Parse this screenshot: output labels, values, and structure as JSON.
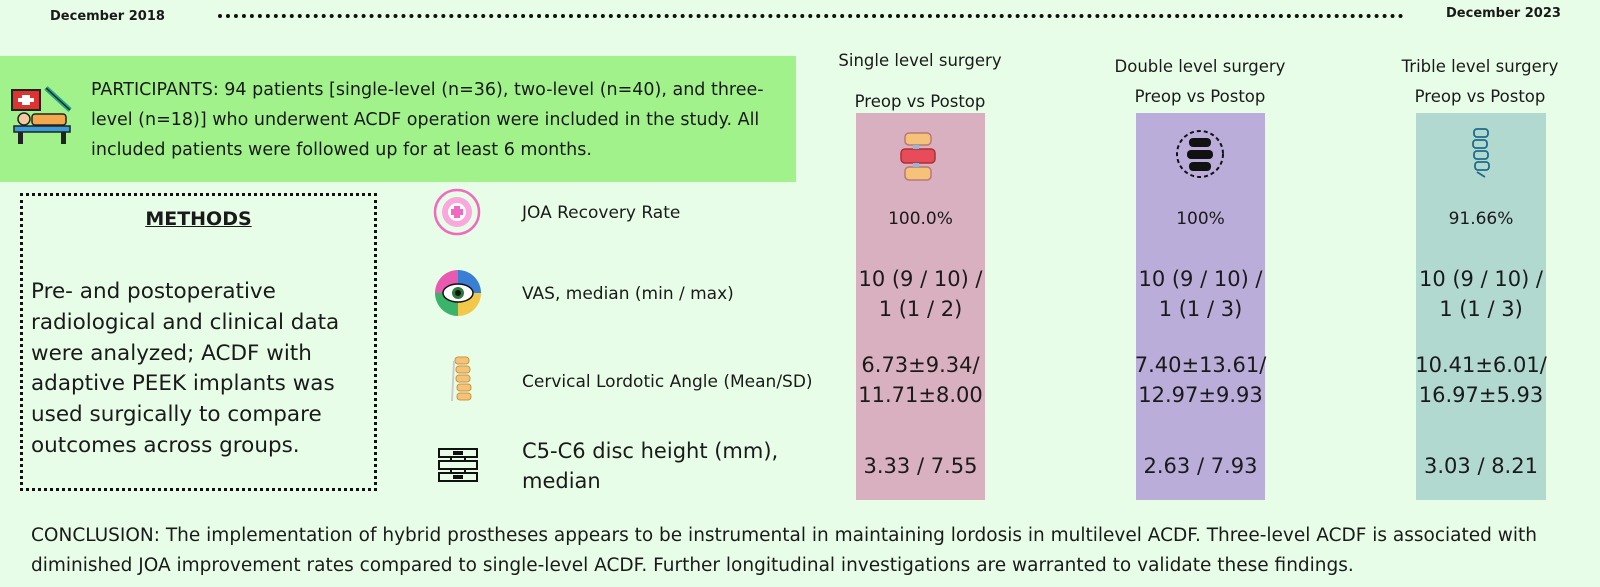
{
  "timeline": {
    "start_label": "December 2018",
    "end_label": "December 2023"
  },
  "participants": {
    "text": "PARTICIPANTS: 94 patients [single-level (n=36), two-level (n=40), and three-level (n=18)] who underwent  ACDF operation were included in the study. All included patients were followed up for at least 6 months.",
    "icon": "patient-bed-icon"
  },
  "methods": {
    "title": "METHODS",
    "text": "Pre- and postoperative radiological and clinical data were analyzed; ACDF with adaptive PEEK implants was used surgically to compare outcomes across groups."
  },
  "columns": [
    {
      "title": "Single level surgery",
      "subtitle": "Preop vs Postop",
      "color": "#d9b0bf",
      "icon": "spine-segment-icon"
    },
    {
      "title": "Double level surgery",
      "subtitle": "Preop vs Postop",
      "color": "#bbadd9",
      "icon": "vertebrae-circle-icon"
    },
    {
      "title": "Trible level surgery",
      "subtitle": "Preop vs Postop",
      "color": "#b2d9d0",
      "icon": "spine-column-icon"
    }
  ],
  "metrics": [
    {
      "label": "JOA Recovery Rate",
      "icon": "joa-target-icon",
      "values": [
        "100.0%",
        "100%",
        "91.66%"
      ]
    },
    {
      "label": "VAS, median (min / max)",
      "icon": "eye-scale-icon",
      "values": [
        [
          "10 (9 / 10) /",
          "1 (1 / 2)"
        ],
        [
          "10 (9 / 10) /",
          "1 (1 / 3)"
        ],
        [
          "10 (9 / 10) /",
          "1 (1 / 3)"
        ]
      ]
    },
    {
      "label": "Cervical Lordotic Angle (Mean/SD)",
      "icon": "vertebral-column-icon",
      "values": [
        [
          "6.73±9.34/",
          "11.71±8.00"
        ],
        [
          "7.40±13.61/",
          "12.97±9.93"
        ],
        [
          "10.41±6.01/",
          "16.97±5.93"
        ]
      ]
    },
    {
      "label": "C5-C6 disc height (mm), median",
      "icon": "disc-height-icon",
      "values": [
        "3.33 / 7.55",
        "2.63 / 7.93",
        "3.03 / 8.21"
      ]
    }
  ],
  "conclusion": "CONCLUSION: The implementation of hybrid prostheses appears to be instrumental in maintaining lordosis in multilevel ACDF. Three-level ACDF is associated with diminished JOA improvement rates compared to single-level ACDF. Further longitudinal investigations are warranted to validate these findings."
}
